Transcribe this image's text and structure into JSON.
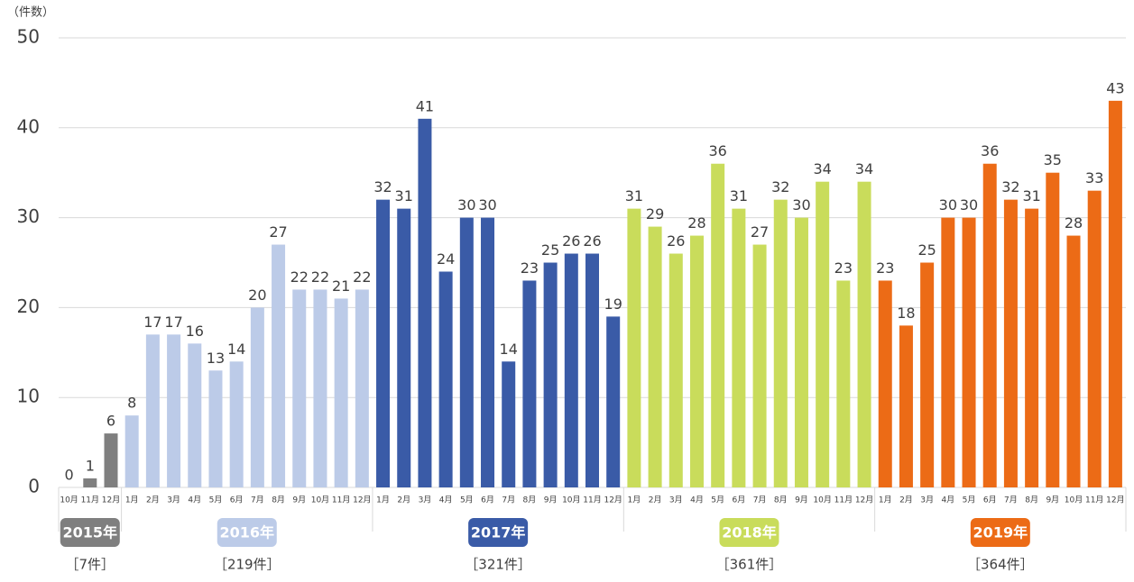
{
  "chart_data": {
    "type": "bar",
    "y_label": "（件数）",
    "ylim": [
      0,
      50
    ],
    "yticks": [
      0,
      10,
      20,
      30,
      40,
      50
    ],
    "grid": true,
    "groups": [
      {
        "name": "2015年",
        "total": "［7件］",
        "color": "#7f7f7f",
        "categories": [
          "10月",
          "11月",
          "12月"
        ],
        "values": [
          0,
          1,
          6
        ]
      },
      {
        "name": "2016年",
        "total": "［219件］",
        "color": "#bccbe8",
        "categories": [
          "1月",
          "2月",
          "3月",
          "4月",
          "5月",
          "6月",
          "7月",
          "8月",
          "9月",
          "10月",
          "11月",
          "12月"
        ],
        "values": [
          8,
          17,
          17,
          16,
          13,
          14,
          20,
          27,
          22,
          22,
          21,
          22
        ]
      },
      {
        "name": "2017年",
        "total": "［321件］",
        "color": "#3a5ba7",
        "categories": [
          "1月",
          "2月",
          "3月",
          "4月",
          "5月",
          "6月",
          "7月",
          "8月",
          "9月",
          "10月",
          "11月",
          "12月"
        ],
        "values": [
          32,
          31,
          41,
          24,
          30,
          30,
          14,
          23,
          25,
          26,
          26,
          19
        ]
      },
      {
        "name": "2018年",
        "total": "［361件］",
        "color": "#c9dc5b",
        "categories": [
          "1月",
          "2月",
          "3月",
          "4月",
          "5月",
          "6月",
          "7月",
          "8月",
          "9月",
          "10月",
          "11月",
          "12月"
        ],
        "values": [
          31,
          29,
          26,
          28,
          36,
          31,
          27,
          32,
          30,
          34,
          23,
          34
        ]
      },
      {
        "name": "2019年",
        "total": "［364件］",
        "color": "#ec6b16",
        "categories": [
          "1月",
          "2月",
          "3月",
          "4月",
          "5月",
          "6月",
          "7月",
          "8月",
          "9月",
          "10月",
          "11月",
          "12月"
        ],
        "values": [
          23,
          18,
          25,
          30,
          30,
          36,
          32,
          31,
          35,
          28,
          33,
          43
        ]
      }
    ]
  }
}
